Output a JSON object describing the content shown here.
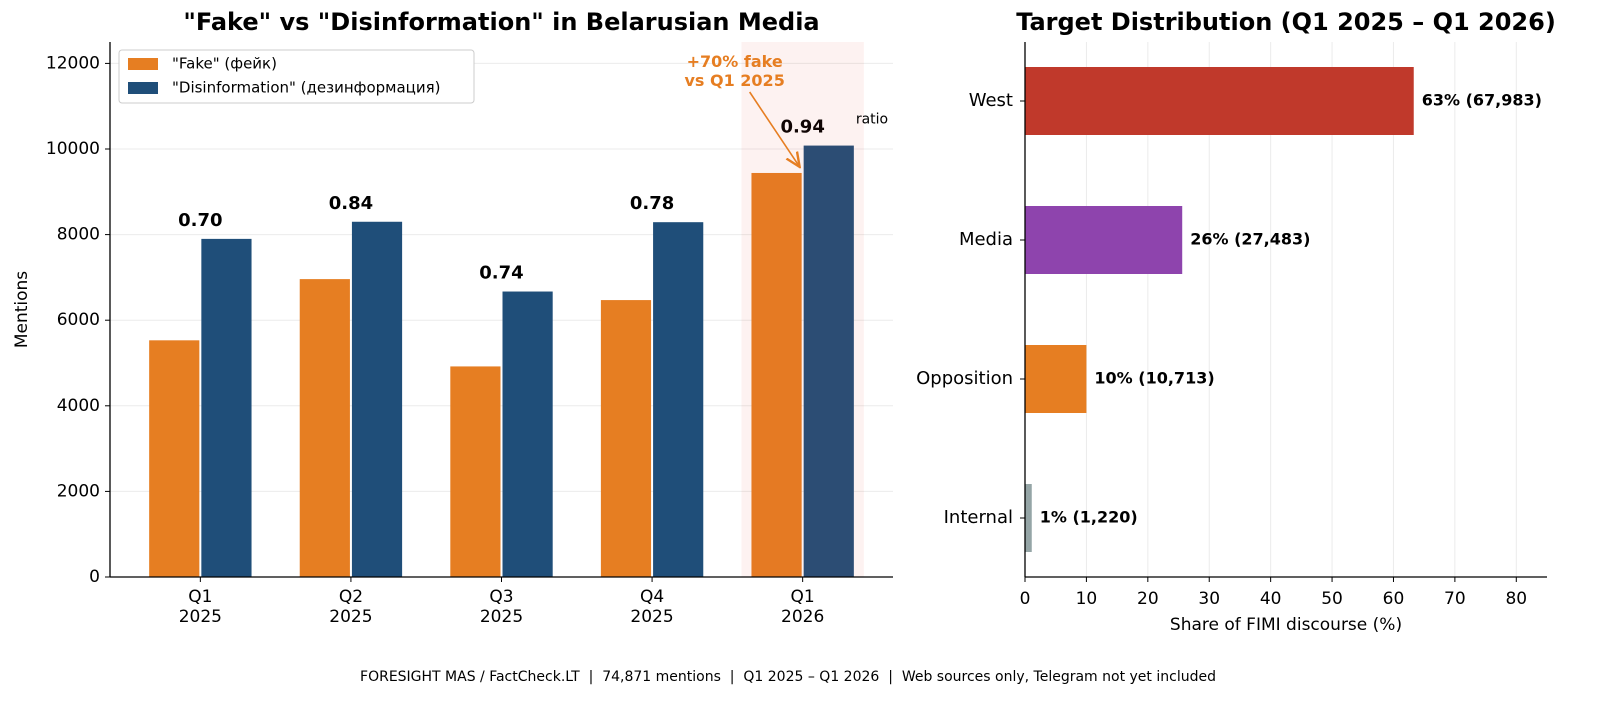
{
  "footer": "FORESIGHT MAS / FactCheck.LT  |  74,871 mentions  |  Q1 2025 – Q1 2026  |  Web sources only, Telegram not yet included",
  "chart_data": [
    {
      "type": "bar",
      "title": "\"Fake\" vs \"Disinformation\" in Belarusian Media",
      "categories": [
        "Q1\n2025",
        "Q2\n2025",
        "Q3\n2025",
        "Q4\n2025",
        "Q1\n2026"
      ],
      "series": [
        {
          "name": "\"Fake\" (фейк)",
          "color": "#e67e22",
          "values": [
            5530,
            6960,
            4920,
            6470,
            9440
          ]
        },
        {
          "name": "\"Disinformation\" (дезинформация)",
          "color": "#1f4e79",
          "values": [
            7900,
            8300,
            6670,
            8290,
            10080
          ]
        }
      ],
      "ratio_labels": [
        "0.70",
        "0.84",
        "0.74",
        "0.78",
        "0.94"
      ],
      "ratio_note": "ratio",
      "ylabel": "Mentions",
      "ylim": [
        0,
        12500
      ],
      "yticks": [
        0,
        2000,
        4000,
        6000,
        8000,
        10000,
        12000
      ],
      "grid": true,
      "legend": "upper left",
      "highlight": 4,
      "annotation": {
        "text": "+70% fake\nvs Q1 2025",
        "color": "#e67e22"
      }
    },
    {
      "type": "barh",
      "title": "Target Distribution (Q1 2025 – Q1 2026)",
      "categories": [
        "West",
        "Media",
        "Opposition",
        "Internal"
      ],
      "values": [
        63.3,
        25.6,
        10.0,
        1.1
      ],
      "value_labels": [
        "63% (67,983)",
        "26% (27,483)",
        "10% (10,713)",
        "1% (1,220)"
      ],
      "colors": [
        "#c0392b",
        "#8e44ad",
        "#e67e22",
        "#95a5a6"
      ],
      "xlabel": "Share of FIMI discourse (%)",
      "xlim": [
        0,
        85
      ],
      "xticks": [
        0,
        10,
        20,
        30,
        40,
        50,
        60,
        70,
        80
      ],
      "grid": true
    }
  ]
}
